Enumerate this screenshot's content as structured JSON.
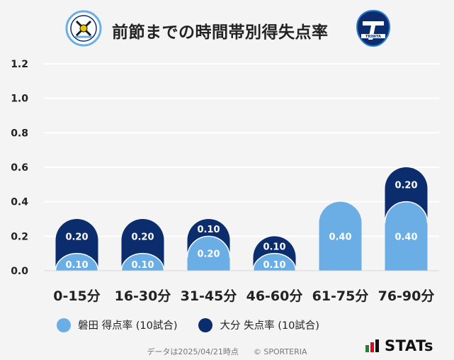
{
  "title": "前節までの時間帯別得失点率",
  "logos": {
    "left": {
      "text": "JUBILO",
      "icon": "jubilo-crest-icon"
    },
    "right": {
      "text": "TRINITA",
      "icon": "trinita-crest-icon"
    }
  },
  "chart_data": {
    "type": "bar",
    "stacked": true,
    "categories": [
      "0-15分",
      "16-30分",
      "31-45分",
      "46-60分",
      "61-75分",
      "76-90分"
    ],
    "ylim": [
      0,
      1.2
    ],
    "yticks": [
      "0.0",
      "0.2",
      "0.4",
      "0.6",
      "0.8",
      "1.0",
      "1.2"
    ],
    "grid": true,
    "series": [
      {
        "name": "磐田 得点率 (10試合)",
        "color": "#6aaee5",
        "values": [
          0.1,
          0.1,
          0.2,
          0.1,
          0.4,
          0.4
        ],
        "labels": [
          "0.10",
          "0.10",
          "0.20",
          "0.10",
          "0.40",
          "0.40"
        ]
      },
      {
        "name": "大分 失点率 (10試合)",
        "color": "#0b2d6e",
        "values": [
          0.2,
          0.2,
          0.1,
          0.1,
          0.0,
          0.2
        ],
        "labels": [
          "0.20",
          "0.20",
          "0.10",
          "0.10",
          "",
          "0.20"
        ]
      }
    ],
    "legend_position": "bottom-left"
  },
  "footer": {
    "note": "データは2025/04/21時点",
    "credit": "© SPORTERIA"
  },
  "brand": {
    "text": "STATs",
    "colors": [
      "#2a7a3a",
      "#e6001a",
      "#111111"
    ]
  }
}
